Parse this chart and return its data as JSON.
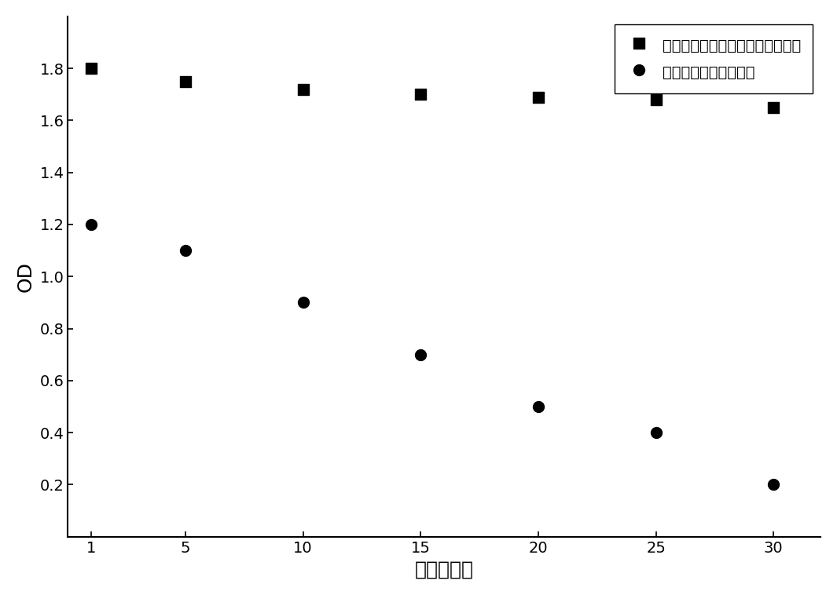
{
  "series1_label": "介孔二氧化硅包裹的正电荷纳米金",
  "series2_label": "未包裹的正电荷纳米金",
  "series1_x": [
    1,
    5,
    10,
    15,
    20,
    25,
    30
  ],
  "series1_y": [
    1.8,
    1.75,
    1.72,
    1.7,
    1.69,
    1.68,
    1.65
  ],
  "series2_x": [
    1,
    5,
    10,
    15,
    20,
    25,
    30
  ],
  "series2_y": [
    1.2,
    1.1,
    0.9,
    0.7,
    0.5,
    0.4,
    0.2
  ],
  "xlabel": "时间（天）",
  "ylabel": "OD",
  "xlim_left": 0,
  "xlim_right": 32,
  "ylim_bottom": 0,
  "ylim_top": 2.0,
  "xticks": [
    1,
    5,
    10,
    15,
    20,
    25,
    30
  ],
  "yticks": [
    0.2,
    0.4,
    0.6,
    0.8,
    1.0,
    1.2,
    1.4,
    1.6,
    1.8
  ],
  "marker1": "s",
  "marker2": "o",
  "marker_color": "#000000",
  "marker_size1": 100,
  "marker_size2": 100,
  "legend_fontsize": 14,
  "axis_label_fontsize": 18,
  "tick_fontsize": 14,
  "background_color": "#ffffff"
}
